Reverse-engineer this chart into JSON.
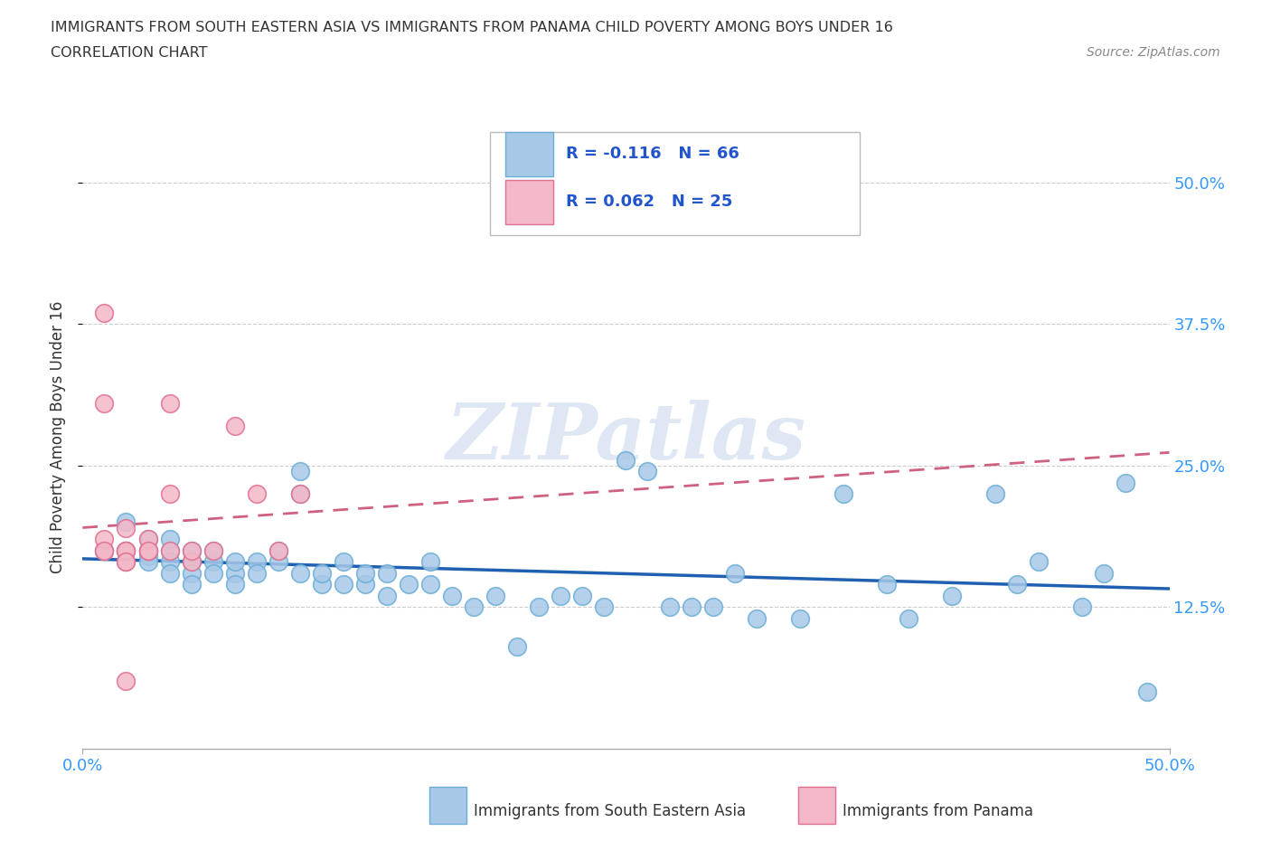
{
  "title_line1": "IMMIGRANTS FROM SOUTH EASTERN ASIA VS IMMIGRANTS FROM PANAMA CHILD POVERTY AMONG BOYS UNDER 16",
  "title_line2": "CORRELATION CHART",
  "source_text": "Source: ZipAtlas.com",
  "ylabel": "Child Poverty Among Boys Under 16",
  "xlim": [
    0.0,
    0.5
  ],
  "ylim": [
    0.0,
    0.55
  ],
  "ytick_values": [
    0.125,
    0.25,
    0.375,
    0.5
  ],
  "ytick_labels": [
    "12.5%",
    "25.0%",
    "37.5%",
    "50.0%"
  ],
  "xtick_values": [
    0.0,
    0.5
  ],
  "xtick_labels": [
    "0.0%",
    "50.0%"
  ],
  "blue_color": "#a8c8e8",
  "blue_edge_color": "#6baed6",
  "pink_color": "#f4b8c8",
  "pink_edge_color": "#e07090",
  "blue_line_color": "#2060b0",
  "pink_line_color": "#d06080",
  "grid_color": "#cccccc",
  "watermark": "ZIPatlas",
  "watermark_color": "#c8d8ec",
  "legend_R1": "R = -0.116",
  "legend_N1": "N = 66",
  "legend_R2": "R = 0.062",
  "legend_N2": "N = 25",
  "legend_label1": "Immigrants from South Eastern Asia",
  "legend_label2": "Immigrants from Panama",
  "axis_label_color": "#3399ff",
  "title_color": "#333333",
  "legend_text_color": "#2255cc",
  "blue_scatter_x": [
    0.01,
    0.02,
    0.02,
    0.03,
    0.03,
    0.03,
    0.03,
    0.04,
    0.04,
    0.04,
    0.04,
    0.05,
    0.05,
    0.05,
    0.05,
    0.06,
    0.06,
    0.06,
    0.07,
    0.07,
    0.07,
    0.08,
    0.08,
    0.09,
    0.09,
    0.1,
    0.1,
    0.1,
    0.11,
    0.11,
    0.12,
    0.12,
    0.13,
    0.13,
    0.14,
    0.14,
    0.15,
    0.16,
    0.16,
    0.17,
    0.18,
    0.19,
    0.2,
    0.21,
    0.22,
    0.23,
    0.24,
    0.25,
    0.26,
    0.27,
    0.28,
    0.29,
    0.3,
    0.31,
    0.33,
    0.35,
    0.37,
    0.38,
    0.4,
    0.42,
    0.43,
    0.44,
    0.46,
    0.47,
    0.48,
    0.49
  ],
  "blue_scatter_y": [
    0.175,
    0.2,
    0.175,
    0.185,
    0.175,
    0.17,
    0.165,
    0.175,
    0.165,
    0.185,
    0.155,
    0.175,
    0.165,
    0.155,
    0.145,
    0.165,
    0.155,
    0.175,
    0.155,
    0.165,
    0.145,
    0.165,
    0.155,
    0.165,
    0.175,
    0.155,
    0.245,
    0.225,
    0.145,
    0.155,
    0.145,
    0.165,
    0.145,
    0.155,
    0.135,
    0.155,
    0.145,
    0.145,
    0.165,
    0.135,
    0.125,
    0.135,
    0.09,
    0.125,
    0.135,
    0.135,
    0.125,
    0.255,
    0.245,
    0.125,
    0.125,
    0.125,
    0.155,
    0.115,
    0.115,
    0.225,
    0.145,
    0.115,
    0.135,
    0.225,
    0.145,
    0.165,
    0.125,
    0.155,
    0.235,
    0.05
  ],
  "pink_scatter_x": [
    0.01,
    0.01,
    0.01,
    0.01,
    0.01,
    0.02,
    0.02,
    0.02,
    0.02,
    0.02,
    0.02,
    0.03,
    0.03,
    0.03,
    0.03,
    0.04,
    0.04,
    0.04,
    0.05,
    0.05,
    0.06,
    0.07,
    0.08,
    0.09,
    0.1
  ],
  "pink_scatter_y": [
    0.175,
    0.185,
    0.305,
    0.385,
    0.175,
    0.175,
    0.165,
    0.175,
    0.165,
    0.195,
    0.06,
    0.175,
    0.175,
    0.185,
    0.175,
    0.225,
    0.305,
    0.175,
    0.165,
    0.175,
    0.175,
    0.285,
    0.225,
    0.175,
    0.225
  ]
}
